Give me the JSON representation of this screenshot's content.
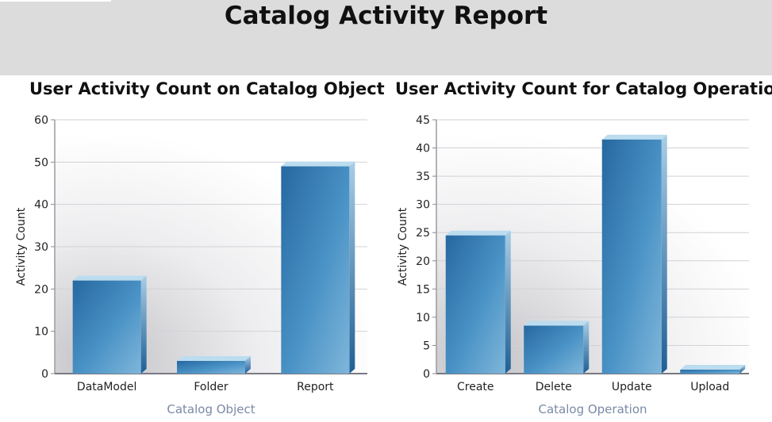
{
  "report": {
    "title": "Catalog Activity Report"
  },
  "colors": {
    "header_bg": "#dcdcdc",
    "bar_dark": "#2668a0",
    "bar_light": "#7fb6da",
    "axis_label": "#7a8aa6"
  },
  "chart_data": [
    {
      "type": "bar",
      "title": "User Activity Count on Catalog Object",
      "categories": [
        "DataModel",
        "Folder",
        "Report"
      ],
      "values": [
        22,
        3,
        49
      ],
      "xlabel": "Catalog Object",
      "ylabel": "Activity Count",
      "ylim": [
        0,
        60
      ],
      "yticks": [
        0,
        10,
        20,
        30,
        40,
        50,
        60
      ],
      "grid": true,
      "style": "3d"
    },
    {
      "type": "bar",
      "title": "User Activity Count for Catalog Operation",
      "categories": [
        "Create",
        "Delete",
        "Update",
        "Upload"
      ],
      "values": [
        24.5,
        8.5,
        41.5,
        0.7
      ],
      "xlabel": "Catalog Operation",
      "ylabel": "Activity Count",
      "ylim": [
        0,
        45
      ],
      "yticks": [
        0,
        5,
        10,
        15,
        20,
        25,
        30,
        35,
        40,
        45
      ],
      "grid": true,
      "style": "3d"
    }
  ]
}
